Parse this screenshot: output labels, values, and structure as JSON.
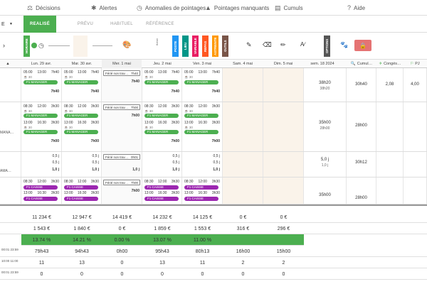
{
  "topnav": {
    "items": [
      {
        "label": "Décisions",
        "icon": "decisions-icon"
      },
      {
        "label": "Alertes",
        "icon": "alert-icon"
      },
      {
        "label": "Anomalies de pointages",
        "icon": "anomaly-icon"
      },
      {
        "label": "Pointages manquants",
        "icon": "warning-icon"
      },
      {
        "label": "Cumuls",
        "icon": "cumul-icon"
      },
      {
        "label": "Aide",
        "icon": "help-icon"
      }
    ]
  },
  "tabs": {
    "left_fragment": "E",
    "realise": "REALISÉ",
    "prevu": "PRÉVU",
    "habituel": "HABITUEL",
    "reference": "RÉFÉRENCE"
  },
  "toolbar": {
    "horaire": "HORAIRE",
    "vtags": [
      "POSTE",
      "LIEU",
      "VARIABLE",
      "REPAS",
      "ASTREINTE",
      "OUTILS"
    ],
    "options": "OPTIONS",
    "affiche_label": "ficher"
  },
  "dates": {
    "days": [
      "Lun. 29 avr.",
      "Mar. 30 avr.",
      "Mer. 1 mai",
      "Jeu. 2 mai",
      "Ven. 3 mai",
      "Sam. 4 mai",
      "Dim. 5 mai"
    ],
    "week": "sem. 18 2024",
    "cumul": "Cumul…",
    "conges": "Congés…",
    "pj": "PJ"
  },
  "rows": [
    {
      "label": "",
      "week_total": "38h20",
      "week_sub": "38h20",
      "cumul": "30h40",
      "conges": "2,08",
      "pj": "4,00"
    },
    {
      "label": "MANA…",
      "week_total": "35h00",
      "week_sub": "28h00",
      "cumul": "28h00"
    },
    {
      "label": "AMA…",
      "week_total": "5,0 j",
      "week_sub": "1,0 j",
      "cumul": "30h12"
    },
    {
      "label": "",
      "week_total": "35h00",
      "week_sub": "",
      "cumul": "28h00"
    }
  ],
  "cells": {
    "poste_manager": "F1 MANAGER",
    "poste_caisse": "F1 CAISSE",
    "ferie": "Férié non trav…",
    "r1": [
      {
        "t1": "05:00",
        "t2": "13:00",
        "d": "7h40",
        "cnt": "30",
        "tot": "7h40"
      },
      {
        "t1": "05:00",
        "t2": "13:00",
        "d": "7h40",
        "cnt": "30",
        "tot": "7h40"
      },
      {
        "ferie_val": "7h40",
        "tot": "7h40"
      },
      {
        "t1": "05:00",
        "t2": "13:00",
        "d": "7h40",
        "cnt": "30",
        "tot": "7h40"
      },
      {
        "t1": "05:00",
        "t2": "13:00",
        "d": "7h40",
        "cnt": "30",
        "tot": "7h40"
      }
    ],
    "r2": [
      {
        "a": "08:30",
        "b": "12:00",
        "c": "3h30",
        "d": "13:00",
        "e": "16:30",
        "f": "3h30",
        "tot": "7h00"
      },
      {
        "a": "08:30",
        "b": "12:00",
        "c": "3h30",
        "d": "13:00",
        "e": "16:30",
        "f": "3h30",
        "tot": "7h00"
      },
      {
        "ferie_val": "7h00",
        "tot": "7h00"
      },
      {
        "a": "08:30",
        "b": "12:00",
        "c": "3h30",
        "d": "13:00",
        "e": "16:30",
        "f": "3h30",
        "tot": "7h00"
      },
      {
        "a": "08:30",
        "b": "12:00",
        "c": "3h30",
        "d": "13:00",
        "e": "16:30",
        "f": "3h30",
        "tot": "7h00"
      }
    ],
    "r3": [
      {
        "v1": "0,5 j",
        "v2": "0,5 j",
        "tot": "1,0 j"
      },
      {
        "v1": "0,5 j",
        "v2": "0,5 j",
        "tot": "1,0 j"
      },
      {
        "ferie_val": "0h01",
        "tot": "1,0 j"
      },
      {
        "v1": "0,5 j",
        "v2": "0,5 j",
        "tot": "1,0 j"
      },
      {
        "v1": "0,5 j",
        "v2": "0,5 j",
        "tot": "1,0 j"
      }
    ],
    "r4": [
      {
        "a": "08:30",
        "b": "12:00",
        "c": "3h30",
        "d": "13:00",
        "e": "16:30",
        "f": "3h30",
        "tot": "7h00"
      },
      {
        "a": "08:30",
        "b": "12:00",
        "c": "3h30",
        "d": "13:00",
        "e": "16:30",
        "f": "3h30",
        "tot": "7h00"
      },
      {
        "ferie_val": "7h00",
        "tot": "7h00"
      },
      {
        "a": "08:30",
        "b": "12:00",
        "c": "3h30",
        "d": "13:00",
        "e": "16:30",
        "f": "3h30",
        "tot": "7h00"
      },
      {
        "a": "08:30",
        "b": "12:00",
        "c": "3h30",
        "d": "13:00",
        "e": "16:30",
        "f": "3h30",
        "tot": "7h00"
      }
    ]
  },
  "summary": {
    "rows": [
      {
        "label": "",
        "values": [
          "11 234 €",
          "12 947 €",
          "14 419 €",
          "14 232 €",
          "14 125 €",
          "0 €",
          "0 €"
        ]
      },
      {
        "label": "",
        "values": [
          "1 543 €",
          "1 840 €",
          "0 €",
          "1 859 €",
          "1 553 €",
          "316 €",
          "296 €"
        ]
      },
      {
        "label": "",
        "values": [
          "13.74 %",
          "14.21 %",
          "0.00 %",
          "13.07 %",
          "11.00 %",
          "",
          ""
        ]
      },
      {
        "label": "00:01 23:59",
        "values": [
          "79h43",
          "94h43",
          "0h00",
          "95h43",
          "80h13",
          "16h00",
          "15h00"
        ]
      },
      {
        "label": "10:00 11:00",
        "values": [
          "11",
          "13",
          "0",
          "13",
          "11",
          "2",
          "2"
        ]
      },
      {
        "label": "00:01 23:59",
        "values": [
          "0",
          "0",
          "0",
          "0",
          "0",
          "0",
          "0"
        ]
      }
    ]
  },
  "colors": {
    "accent": "#4caf50",
    "purple": "#9c27b0",
    "danger": "#e57373"
  }
}
